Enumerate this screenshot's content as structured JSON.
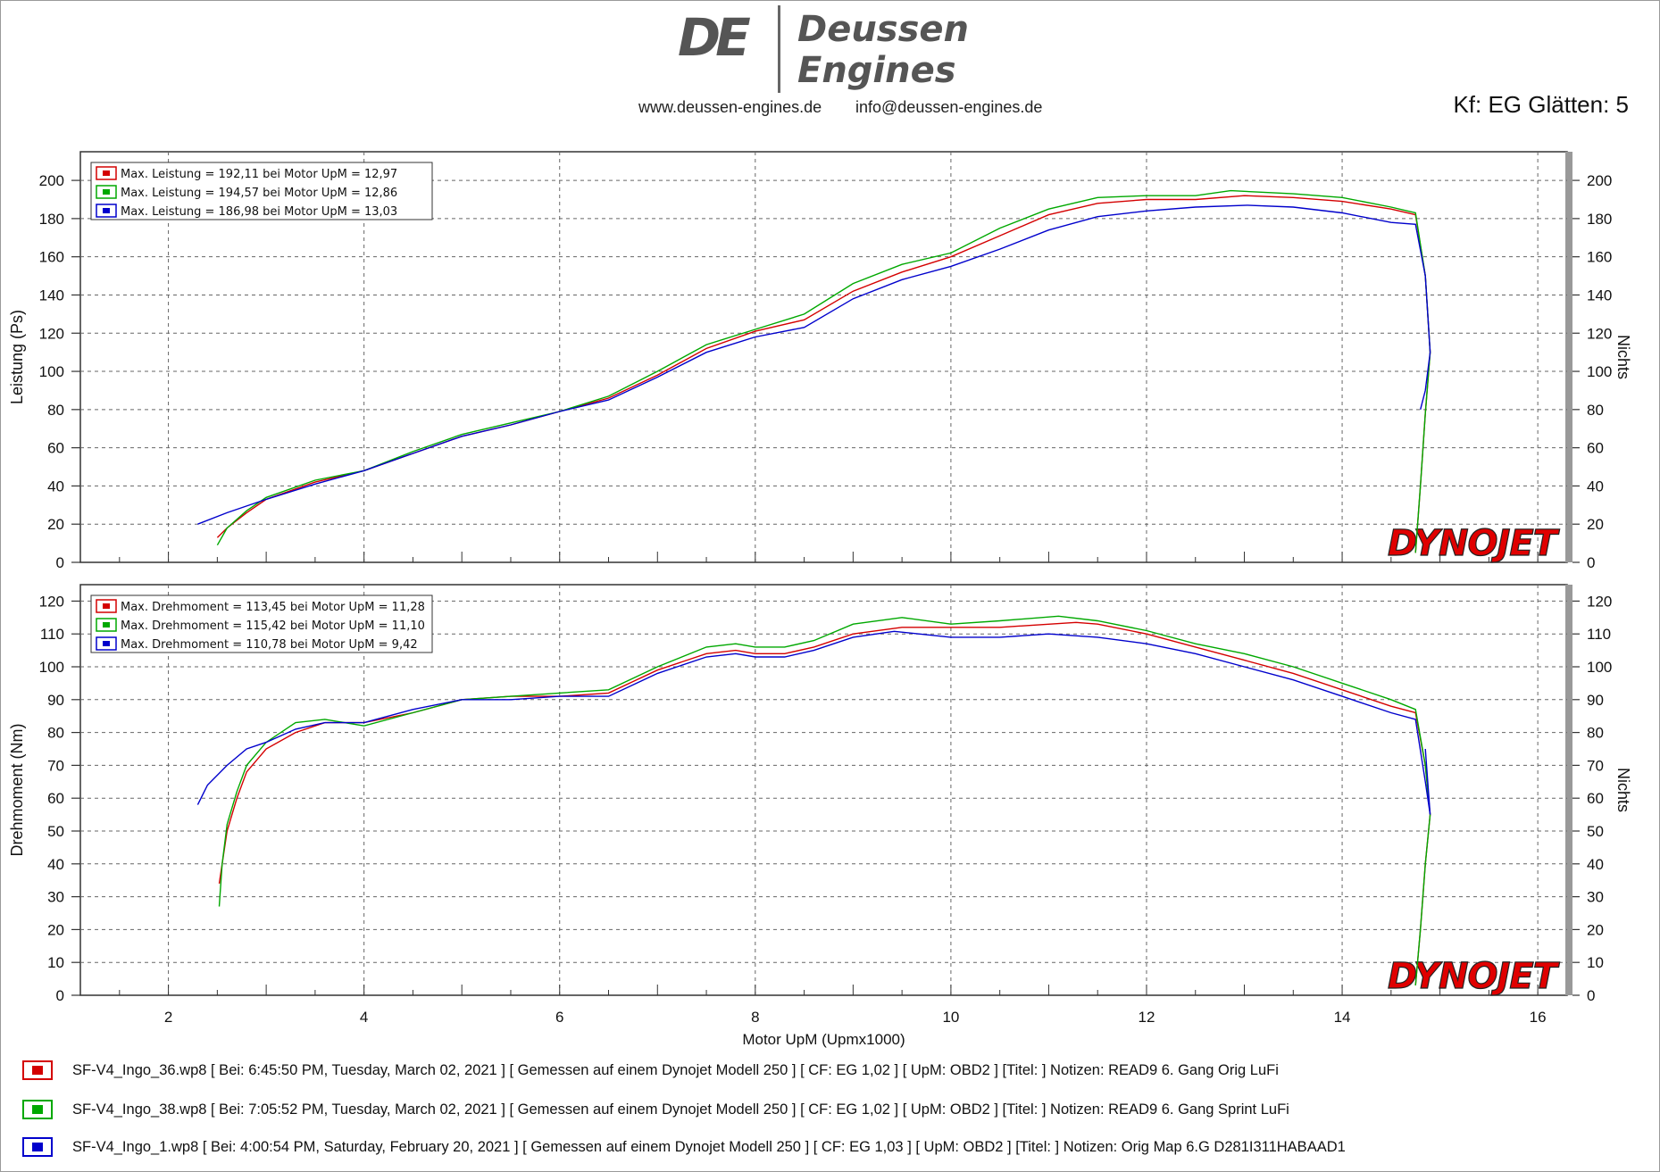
{
  "header": {
    "logo_letters": "DE",
    "logo_word_1": "Deussen",
    "logo_word_2": "Engines",
    "website": "www.deussen-engines.de",
    "email": "info@deussen-engines.de",
    "smoothing": "Kf: EG Glätten: 5"
  },
  "colors": {
    "red": "#d40000",
    "green": "#00a800",
    "blue": "#0000cc",
    "grid": "#555555",
    "brand_red": "#e00000"
  },
  "chart_data": [
    {
      "type": "line",
      "ylabel": "Leistung (Ps)",
      "ylabel_right": "Nichts",
      "xlim": [
        1.1,
        16.3
      ],
      "ylim": [
        0,
        215
      ],
      "yticks": [
        0,
        20,
        40,
        60,
        80,
        100,
        120,
        140,
        160,
        180,
        200
      ],
      "xticks": [
        2,
        4,
        6,
        8,
        10,
        12,
        14,
        16
      ],
      "grid": true,
      "watermark": "DYNOJET",
      "legend": [
        "Max. Leistung = 192,11 bei Motor UpM = 12,97",
        "Max. Leistung = 194,57 bei Motor UpM = 12,86",
        "Max. Leistung = 186,98 bei Motor UpM = 13,03"
      ],
      "series": [
        {
          "color": "red",
          "x": [
            2.5,
            2.6,
            2.8,
            3.0,
            3.5,
            4.0,
            4.5,
            5.0,
            5.5,
            6.0,
            6.5,
            7.0,
            7.5,
            8.0,
            8.5,
            9.0,
            9.5,
            10.0,
            10.5,
            11.0,
            11.5,
            12.0,
            12.5,
            13.0,
            13.5,
            14.0,
            14.5,
            14.75,
            14.85,
            14.9,
            14.85,
            14.8,
            14.75
          ],
          "y": [
            13,
            18,
            26,
            33,
            42,
            48,
            57,
            66,
            72,
            79,
            86,
            98,
            112,
            121,
            127,
            142,
            152,
            160,
            171,
            182,
            188,
            190,
            190,
            192,
            191,
            189,
            185,
            182,
            150,
            110,
            78,
            40,
            5
          ]
        },
        {
          "color": "green",
          "x": [
            2.5,
            2.6,
            2.8,
            3.0,
            3.5,
            4.0,
            4.5,
            5.0,
            5.5,
            6.0,
            6.5,
            7.0,
            7.5,
            8.0,
            8.5,
            9.0,
            9.5,
            10.0,
            10.5,
            11.0,
            11.5,
            12.0,
            12.5,
            12.86,
            13.5,
            14.0,
            14.5,
            14.75,
            14.85,
            14.9,
            14.85,
            14.8,
            14.75
          ],
          "y": [
            9,
            18,
            27,
            34,
            43,
            48,
            58,
            67,
            73,
            79,
            87,
            100,
            114,
            122,
            130,
            146,
            156,
            162,
            175,
            185,
            191,
            192,
            192,
            194.6,
            193,
            191,
            186,
            183,
            150,
            110,
            78,
            40,
            5
          ]
        },
        {
          "color": "blue",
          "x": [
            2.3,
            2.6,
            3.0,
            3.5,
            4.0,
            4.5,
            5.0,
            5.5,
            6.0,
            6.5,
            7.0,
            7.5,
            8.0,
            8.5,
            9.0,
            9.5,
            10.0,
            10.5,
            11.0,
            11.5,
            12.0,
            12.5,
            13.03,
            13.5,
            14.0,
            14.5,
            14.75,
            14.85,
            14.9,
            14.85,
            14.8
          ],
          "y": [
            20,
            26,
            33,
            41,
            48,
            57,
            66,
            72,
            79,
            85,
            97,
            110,
            118,
            123,
            138,
            148,
            155,
            164,
            174,
            181,
            184,
            186,
            187,
            186,
            183,
            178,
            177,
            150,
            110,
            90,
            80
          ]
        }
      ]
    },
    {
      "type": "line",
      "ylabel": "Drehmoment (Nm)",
      "ylabel_right": "Nichts",
      "xlabel": "Motor UpM (Upmx1000)",
      "xlim": [
        1.1,
        16.3
      ],
      "ylim": [
        0,
        125
      ],
      "yticks": [
        0,
        10,
        20,
        30,
        40,
        50,
        60,
        70,
        80,
        90,
        100,
        110,
        120
      ],
      "xticks": [
        2,
        4,
        6,
        8,
        10,
        12,
        14,
        16
      ],
      "grid": true,
      "watermark": "DYNOJET",
      "legend": [
        "Max. Drehmoment = 113,45 bei Motor UpM = 11,28",
        "Max. Drehmoment = 115,42 bei Motor UpM = 11,10",
        "Max. Drehmoment = 110,78 bei Motor UpM = 9,42"
      ],
      "series": [
        {
          "color": "red",
          "x": [
            2.52,
            2.55,
            2.6,
            2.7,
            2.8,
            3.0,
            3.3,
            3.6,
            4.0,
            4.5,
            5.0,
            5.5,
            6.0,
            6.5,
            7.0,
            7.5,
            7.8,
            8.0,
            8.3,
            8.6,
            9.0,
            9.5,
            10.0,
            10.5,
            11.28,
            11.5,
            12.0,
            12.5,
            13.0,
            13.5,
            14.0,
            14.5,
            14.75,
            14.85,
            14.9,
            14.85,
            14.8,
            14.75
          ],
          "y": [
            34,
            40,
            50,
            60,
            68,
            75,
            80,
            83,
            83,
            86,
            90,
            91,
            91,
            92,
            99,
            104,
            105,
            104,
            104,
            106,
            110,
            112,
            112,
            112,
            113.5,
            113,
            110,
            106,
            102,
            98,
            93,
            88,
            86,
            70,
            55,
            40,
            20,
            3
          ]
        },
        {
          "color": "green",
          "x": [
            2.52,
            2.55,
            2.6,
            2.7,
            2.8,
            3.0,
            3.3,
            3.6,
            4.0,
            4.5,
            5.0,
            5.5,
            6.0,
            6.5,
            7.0,
            7.5,
            7.8,
            8.0,
            8.3,
            8.6,
            9.0,
            9.5,
            10.0,
            10.5,
            11.1,
            11.5,
            12.0,
            12.5,
            13.0,
            13.5,
            14.0,
            14.5,
            14.75,
            14.85,
            14.9,
            14.85,
            14.8,
            14.75
          ],
          "y": [
            27,
            40,
            52,
            62,
            70,
            77,
            83,
            84,
            82,
            86,
            90,
            91,
            92,
            93,
            100,
            106,
            107,
            106,
            106,
            108,
            113,
            115,
            113,
            114,
            115.4,
            114,
            111,
            107,
            104,
            100,
            95,
            90,
            87,
            70,
            55,
            40,
            20,
            3
          ]
        },
        {
          "color": "blue",
          "x": [
            2.3,
            2.4,
            2.6,
            2.8,
            3.0,
            3.3,
            3.6,
            4.0,
            4.5,
            5.0,
            5.5,
            6.0,
            6.5,
            7.0,
            7.5,
            7.8,
            8.0,
            8.3,
            8.6,
            9.0,
            9.42,
            10.0,
            10.5,
            11.0,
            11.5,
            12.0,
            12.5,
            13.0,
            13.5,
            14.0,
            14.5,
            14.75,
            14.85,
            14.9,
            14.85
          ],
          "y": [
            58,
            64,
            70,
            75,
            77,
            81,
            83,
            83,
            87,
            90,
            90,
            91,
            91,
            98,
            103,
            104,
            103,
            103,
            105,
            109,
            110.8,
            109,
            109,
            110,
            109,
            107,
            104,
            100,
            96,
            91,
            86,
            84,
            65,
            55,
            75
          ]
        }
      ]
    }
  ],
  "files": [
    {
      "color": "red",
      "text": "SF-V4_Ingo_36.wp8 [ Bei: 6:45:50 PM, Tuesday, March 02, 2021 ] [ Gemessen auf einem Dynojet Modell 250 ] [ CF: EG 1,02 ] [ UpM: OBD2 ] [Titel: ]  Notizen: READ9 6. Gang Orig LuFi"
    },
    {
      "color": "green",
      "text": "SF-V4_Ingo_38.wp8 [ Bei: 7:05:52 PM, Tuesday, March 02, 2021 ] [ Gemessen auf einem Dynojet Modell 250 ] [ CF: EG 1,02 ] [ UpM: OBD2 ] [Titel: ]  Notizen: READ9 6. Gang Sprint LuFi"
    },
    {
      "color": "blue",
      "text": "SF-V4_Ingo_1.wp8 [ Bei: 4:00:54 PM, Saturday, February 20, 2021 ] [ Gemessen auf einem Dynojet Modell 250 ] [ CF: EG 1,03 ] [ UpM: OBD2 ] [Titel: ]  Notizen: Orig Map 6.G D281I311HABAAD1"
    }
  ]
}
